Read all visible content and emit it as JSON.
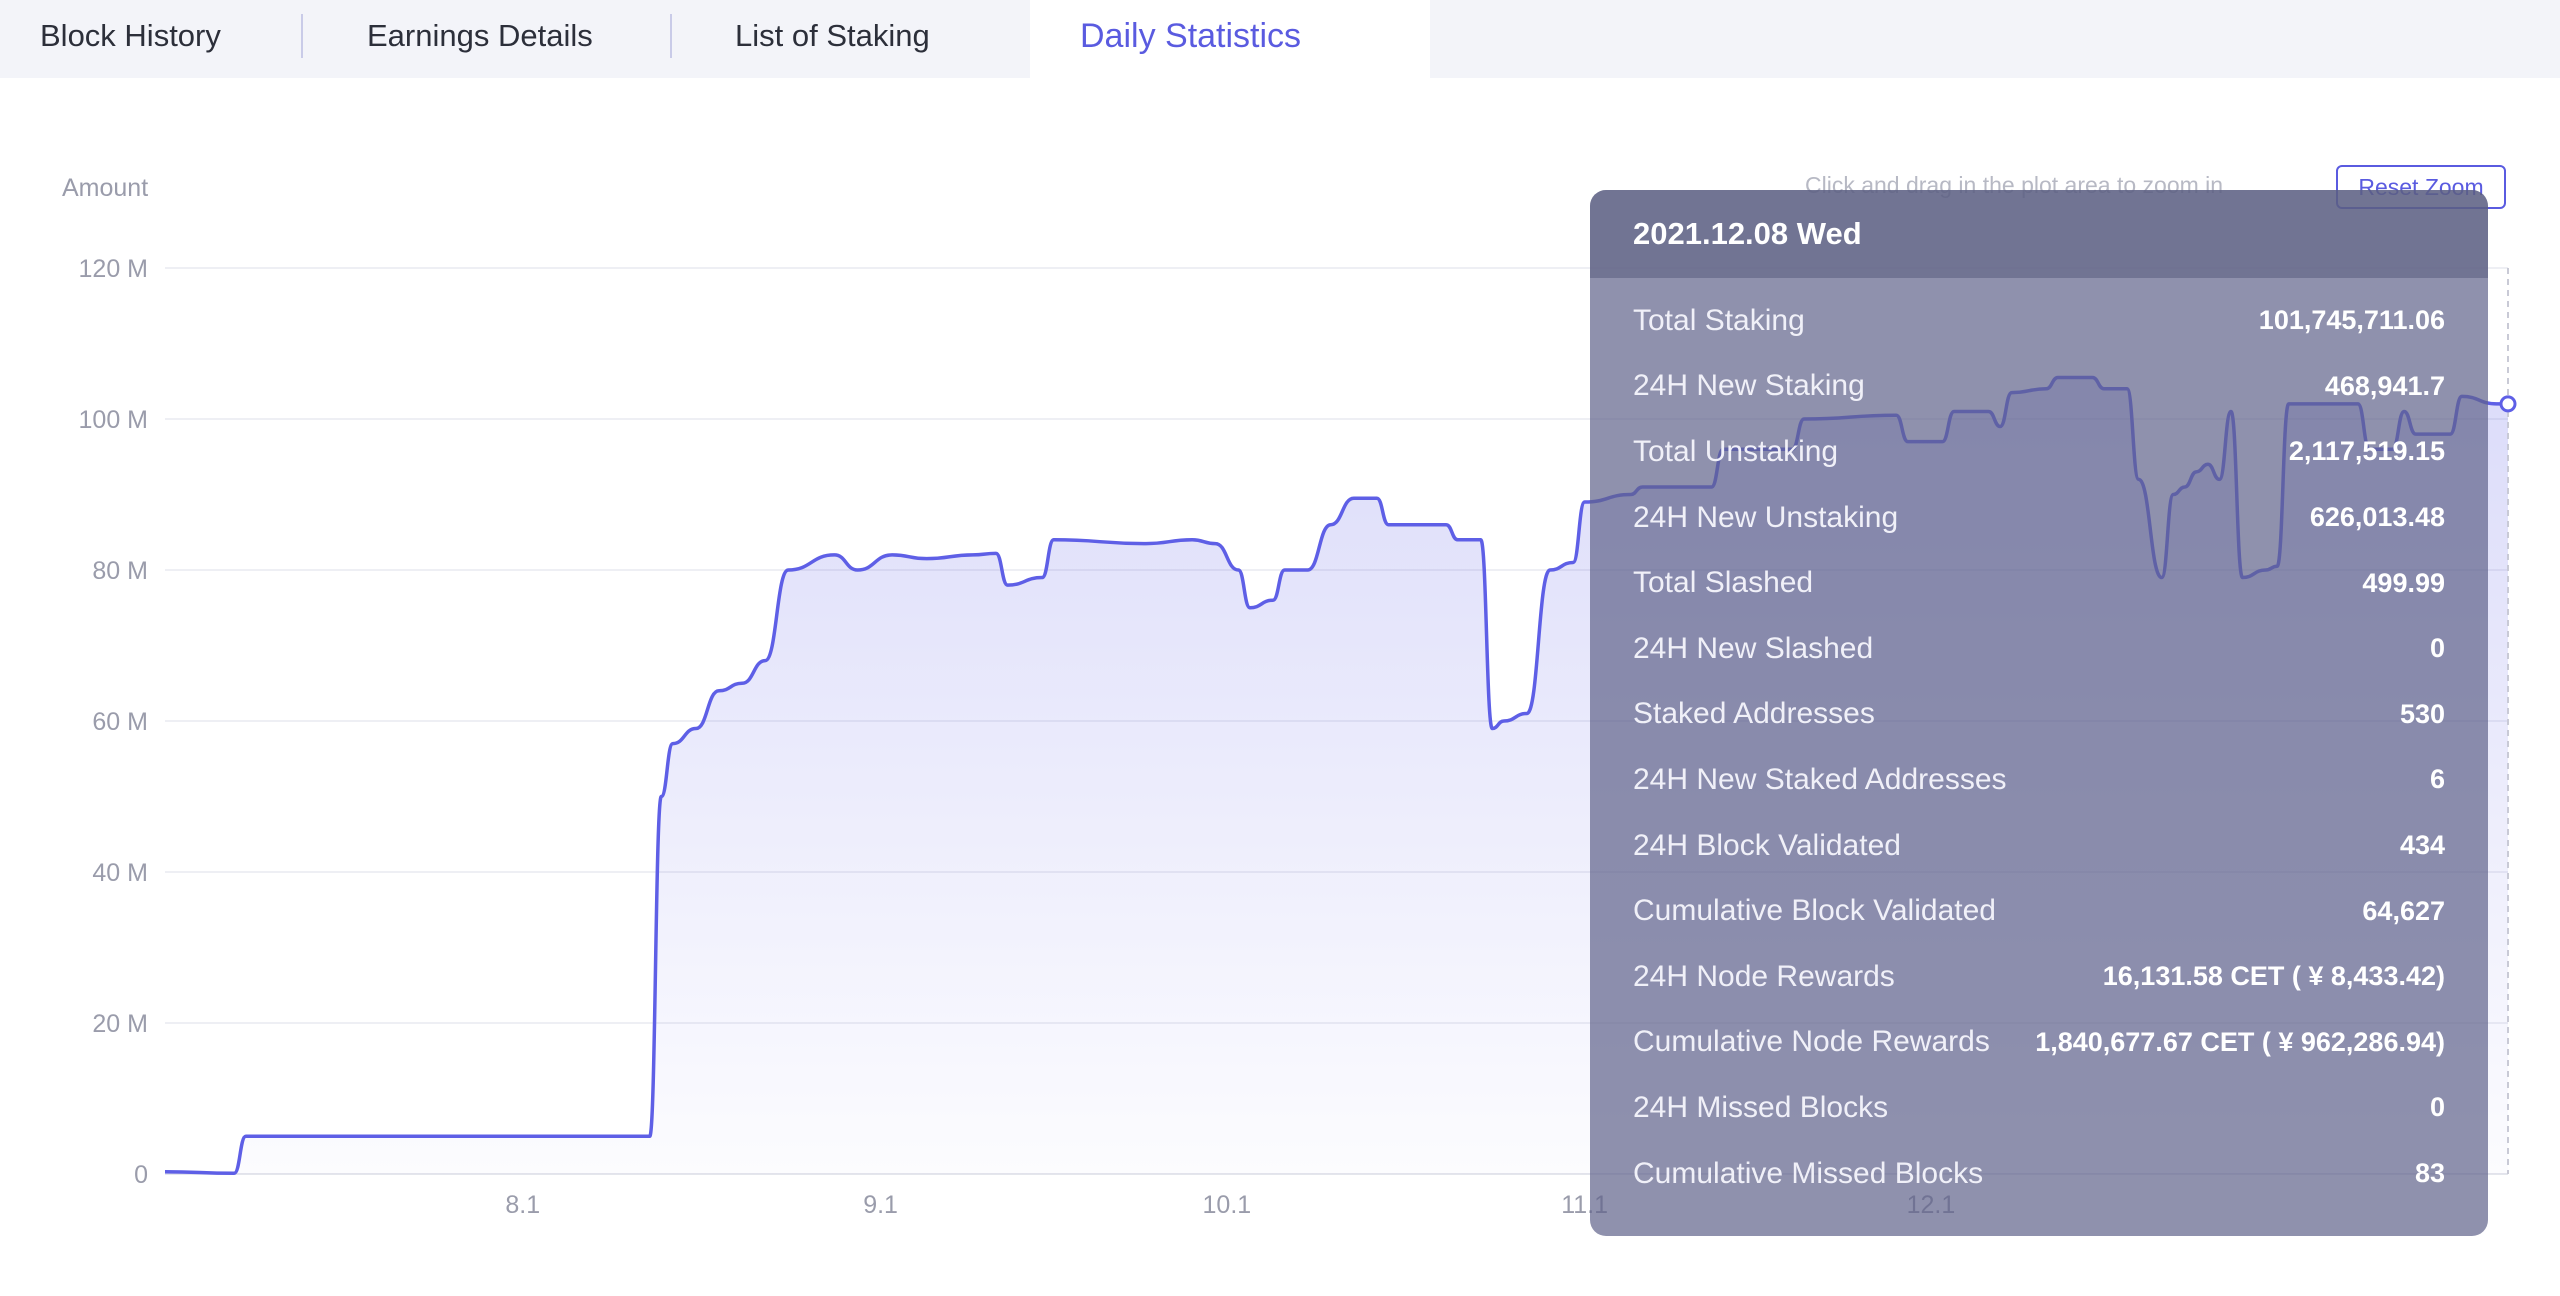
{
  "tabs": [
    {
      "label": "Block History",
      "active": false
    },
    {
      "label": "Earnings Details",
      "active": false
    },
    {
      "label": "List of Staking",
      "active": false
    },
    {
      "label": "Daily Statistics",
      "active": true
    }
  ],
  "colors": {
    "accent": "#5a5be0",
    "line": "#5e5fe6",
    "tab_bg": "#f3f4f9",
    "grid": "#e9eaf0",
    "axis_text": "#9a9cab"
  },
  "chart_controls": {
    "zoom_hint": "Click and drag in the plot area to zoom in",
    "reset_zoom": "Reset Zoom"
  },
  "chart_data": {
    "type": "area",
    "title": "",
    "ylabel": "Amount",
    "xlabel": "",
    "ylim": [
      0,
      120000000
    ],
    "y_ticks": [
      "0",
      "20 M",
      "40 M",
      "60 M",
      "80 M",
      "100 M",
      "120 M"
    ],
    "x_ticks": [
      "8.1",
      "9.1",
      "10.1",
      "11.1",
      "12.1"
    ],
    "grid": true,
    "series": [
      {
        "values_in_millions": [
          [
            0,
            0.3
          ],
          [
            6,
            0.1
          ],
          [
            7,
            5
          ],
          [
            42,
            5
          ],
          [
            43,
            50
          ],
          [
            44,
            57
          ],
          [
            46,
            59
          ],
          [
            48,
            64
          ],
          [
            50,
            65
          ],
          [
            52,
            68
          ],
          [
            54,
            80
          ],
          [
            58,
            82
          ],
          [
            60,
            80
          ],
          [
            63,
            82
          ],
          [
            66,
            81.5
          ],
          [
            70,
            82
          ],
          [
            72,
            82.2
          ],
          [
            73,
            78
          ],
          [
            76,
            79
          ],
          [
            77,
            84
          ],
          [
            85,
            83.5
          ],
          [
            89,
            84
          ],
          [
            91,
            83.5
          ],
          [
            93,
            80
          ],
          [
            94,
            75
          ],
          [
            96,
            76
          ],
          [
            97,
            80
          ],
          [
            99,
            80
          ],
          [
            101,
            86
          ],
          [
            103,
            89.5
          ],
          [
            105,
            89.5
          ],
          [
            106,
            86
          ],
          [
            111,
            86
          ],
          [
            112,
            84
          ],
          [
            114,
            84
          ],
          [
            115,
            59
          ],
          [
            116,
            60
          ],
          [
            118,
            61
          ],
          [
            120,
            80
          ],
          [
            122,
            81
          ],
          [
            123,
            89
          ],
          [
            127,
            90
          ],
          [
            128,
            91
          ],
          [
            134,
            91
          ],
          [
            135,
            96
          ],
          [
            141,
            96
          ],
          [
            142,
            100
          ],
          [
            150,
            100.5
          ],
          [
            151,
            97
          ],
          [
            154,
            97
          ],
          [
            155,
            101
          ],
          [
            158,
            101
          ],
          [
            159,
            99
          ],
          [
            160,
            103.5
          ],
          [
            163,
            104
          ],
          [
            164,
            105.5
          ],
          [
            167,
            105.5
          ],
          [
            168,
            104
          ],
          [
            170,
            104
          ],
          [
            171,
            92
          ],
          [
            173,
            79
          ],
          [
            174,
            90
          ],
          [
            175,
            91
          ],
          [
            176,
            93
          ],
          [
            177,
            94
          ],
          [
            178,
            92
          ],
          [
            179,
            101
          ],
          [
            180,
            79
          ],
          [
            182,
            80
          ],
          [
            183,
            80.5
          ],
          [
            184,
            102
          ],
          [
            190,
            102
          ],
          [
            191,
            96
          ],
          [
            193,
            96
          ],
          [
            194,
            101
          ],
          [
            195,
            98
          ],
          [
            198,
            98
          ],
          [
            199,
            103
          ],
          [
            202,
            102
          ],
          [
            203,
            102
          ]
        ],
        "x_axis_note_days_since_2021_07_01": true
      }
    ]
  },
  "tooltip": {
    "date": "2021.12.08 Wed",
    "rows": [
      {
        "label": "Total Staking",
        "value": "101,745,711.06"
      },
      {
        "label": "24H New Staking",
        "value": "468,941.7"
      },
      {
        "label": "Total Unstaking",
        "value": "2,117,519.15"
      },
      {
        "label": "24H New Unstaking",
        "value": "626,013.48"
      },
      {
        "label": "Total Slashed",
        "value": "499.99"
      },
      {
        "label": "24H New Slashed",
        "value": "0"
      },
      {
        "label": "Staked Addresses",
        "value": "530"
      },
      {
        "label": "24H New Staked Addresses",
        "value": "6"
      },
      {
        "label": "24H Block Validated",
        "value": "434"
      },
      {
        "label": "Cumulative Block Validated",
        "value": "64,627"
      },
      {
        "label": "24H Node Rewards",
        "value": "16,131.58 CET ( ¥ 8,433.42)"
      },
      {
        "label": "Cumulative Node Rewards",
        "value": "1,840,677.67 CET ( ¥ 962,286.94)"
      },
      {
        "label": "24H Missed Blocks",
        "value": "0"
      },
      {
        "label": "Cumulative Missed Blocks",
        "value": "83"
      }
    ]
  }
}
